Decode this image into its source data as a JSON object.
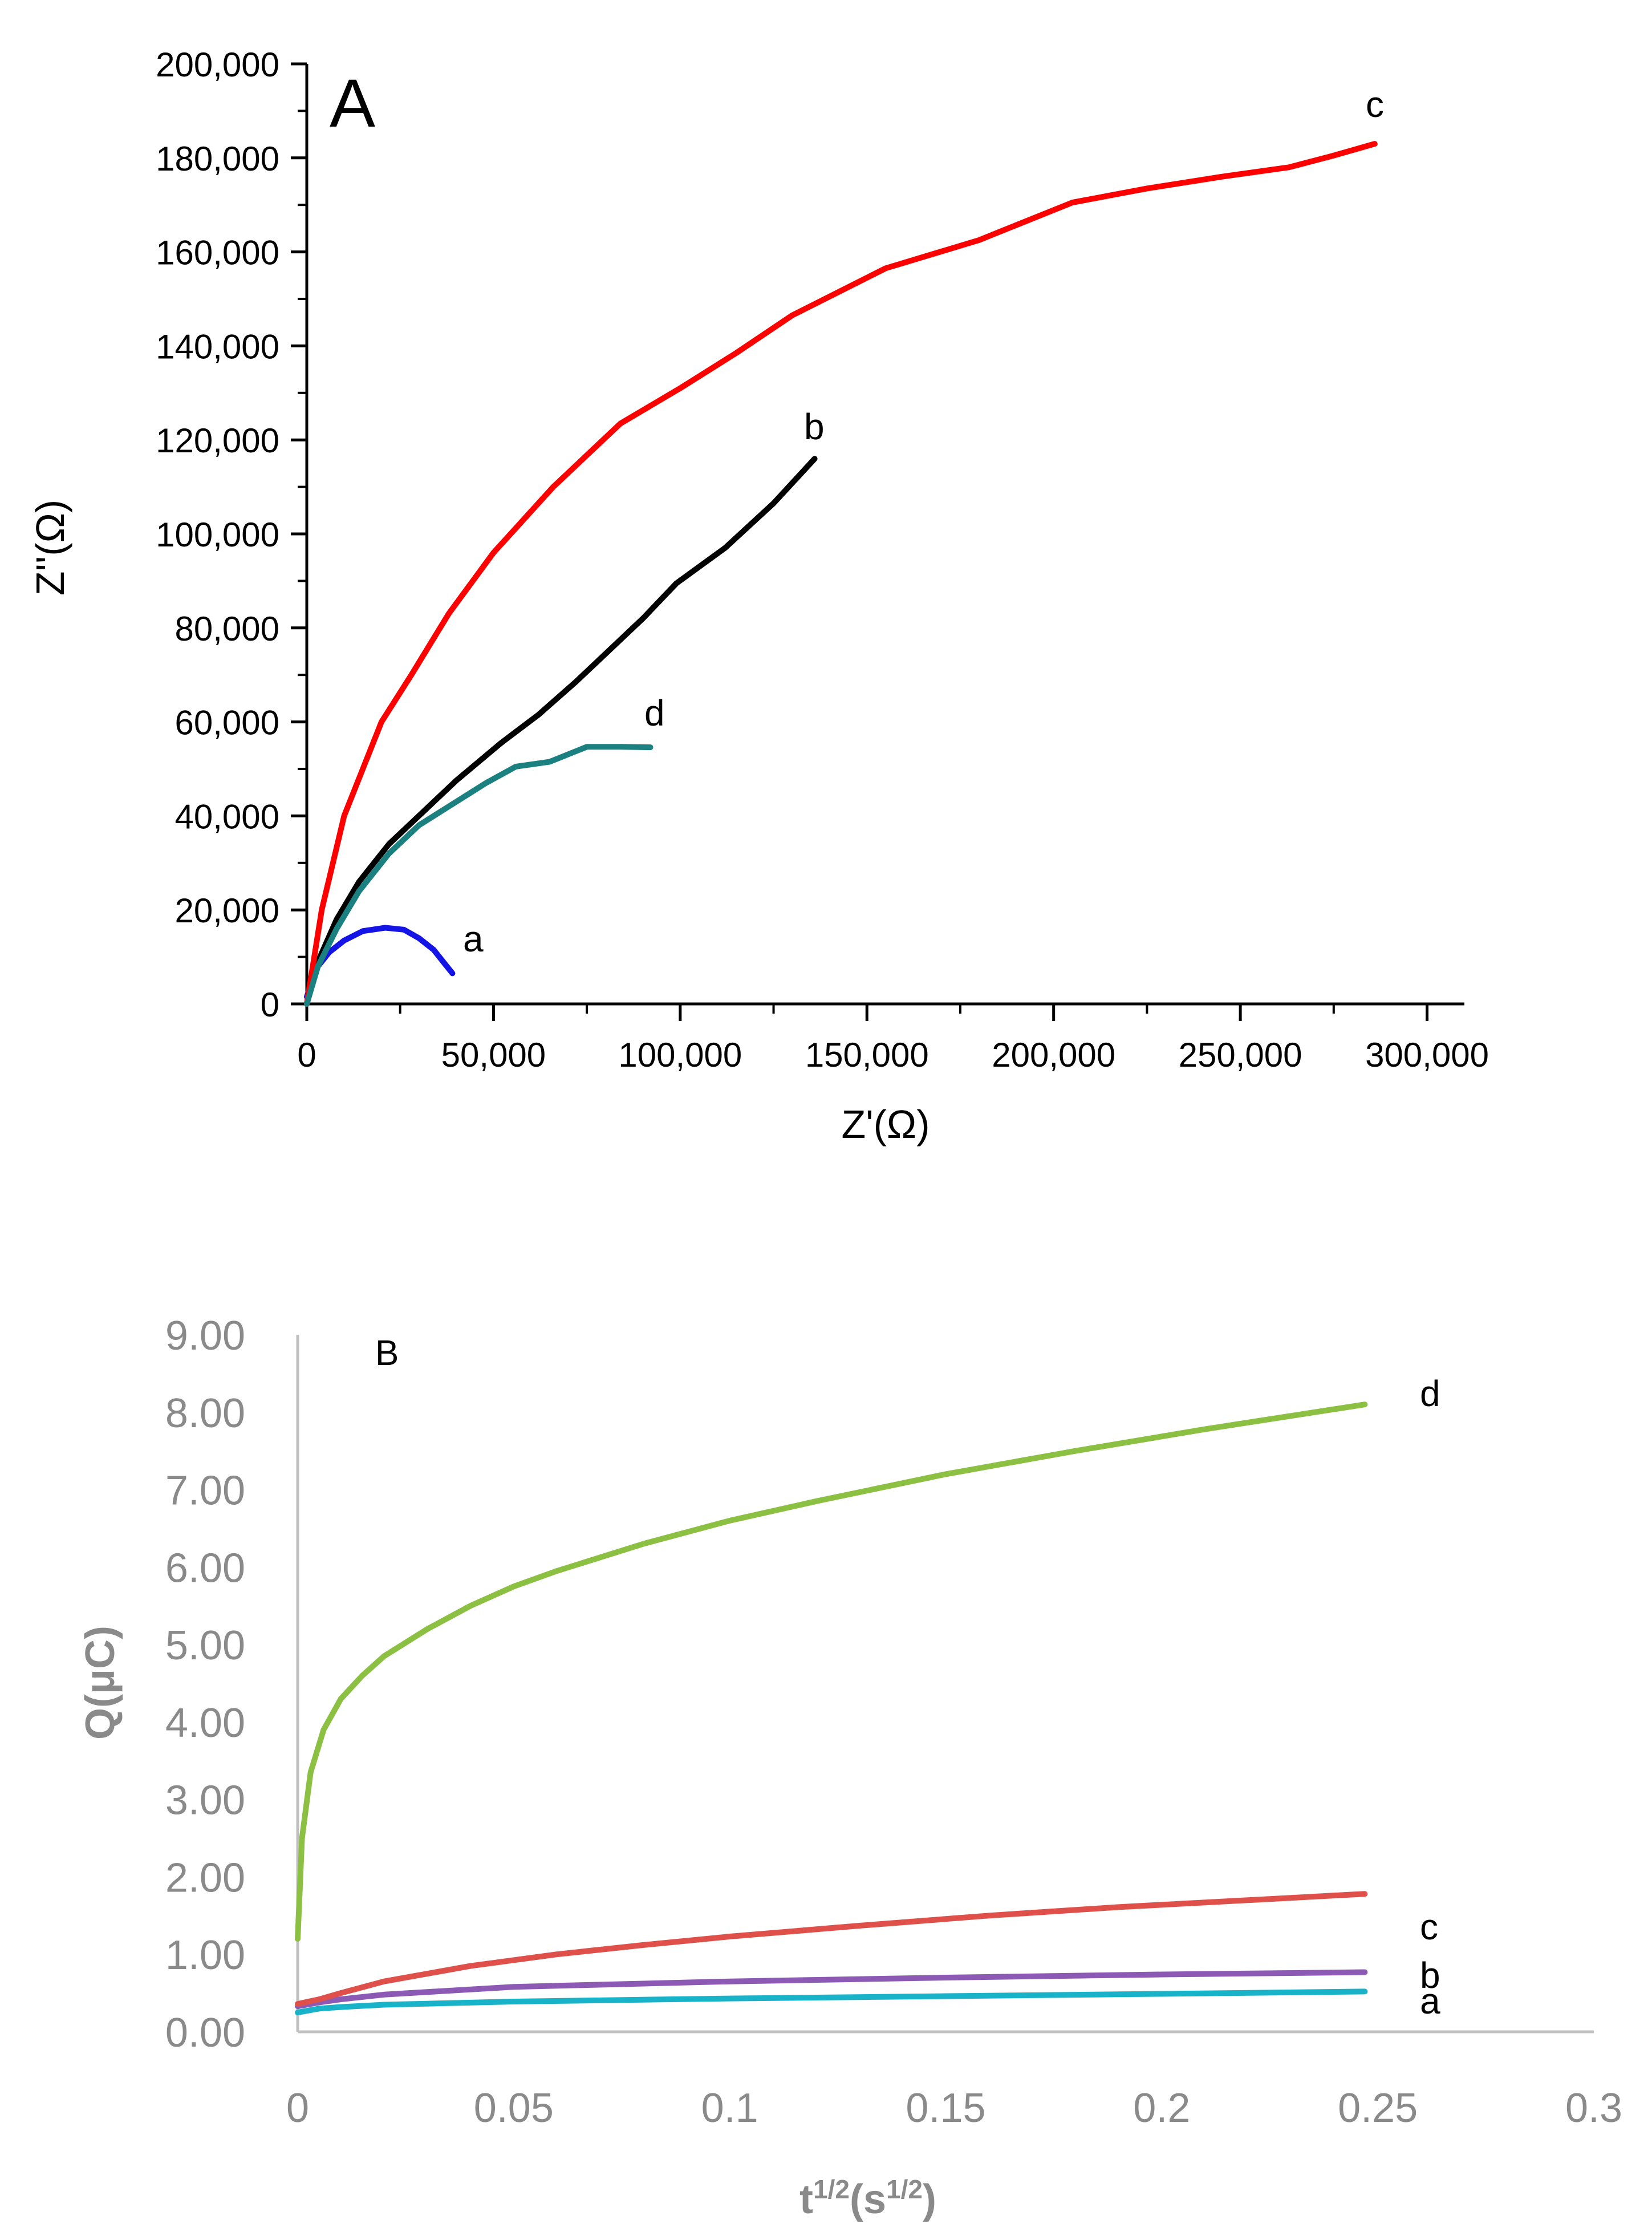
{
  "charts": [
    {
      "id": "A",
      "type": "line",
      "panel_label": "A",
      "xlabel": "Z'(Ω)",
      "ylabel": "Z''(Ω)",
      "xlim": [
        0,
        310000
      ],
      "ylim": [
        0,
        200000
      ],
      "x_ticks": [
        {
          "value": 0,
          "label": "0"
        },
        {
          "value": 50000,
          "label": "50,000"
        },
        {
          "value": 100000,
          "label": "100,000"
        },
        {
          "value": 150000,
          "label": "150,000"
        },
        {
          "value": 200000,
          "label": "200,000"
        },
        {
          "value": 250000,
          "label": "250,000"
        },
        {
          "value": 300000,
          "label": "300,000"
        }
      ],
      "y_ticks": [
        {
          "value": 0,
          "label": "0"
        },
        {
          "value": 20000,
          "label": "20,000"
        },
        {
          "value": 40000,
          "label": "40,000"
        },
        {
          "value": 60000,
          "label": "60,000"
        },
        {
          "value": 80000,
          "label": "80,000"
        },
        {
          "value": 100000,
          "label": "100,000"
        },
        {
          "value": 120000,
          "label": "120,000"
        },
        {
          "value": 140000,
          "label": "140,000"
        },
        {
          "value": 160000,
          "label": "160,000"
        },
        {
          "value": 180000,
          "label": "180,000"
        },
        {
          "value": 200000,
          "label": "200,000"
        }
      ],
      "series": [
        {
          "name": "a",
          "label": "a",
          "color": "#1414e6",
          "points": [
            [
              0,
              1500
            ],
            [
              2500,
              7500
            ],
            [
              6000,
              11000
            ],
            [
              10000,
              13500
            ],
            [
              15000,
              15500
            ],
            [
              21000,
              16200
            ],
            [
              26000,
              15800
            ],
            [
              30000,
              14000
            ],
            [
              34000,
              11500
            ],
            [
              37000,
              8500
            ],
            [
              39000,
              6500
            ]
          ]
        },
        {
          "name": "b",
          "label": "b",
          "color": "#000000",
          "points": [
            [
              0,
              0
            ],
            [
              3000,
              9000
            ],
            [
              8000,
              18000
            ],
            [
              14000,
              26000
            ],
            [
              22000,
              34000
            ],
            [
              30000,
              40000
            ],
            [
              40000,
              47500
            ],
            [
              52000,
              55500
            ],
            [
              62000,
              61500
            ],
            [
              72000,
              68500
            ],
            [
              82000,
              76000
            ],
            [
              90000,
              82000
            ],
            [
              99000,
              89500
            ],
            [
              112000,
              97000
            ],
            [
              125000,
              106500
            ],
            [
              136000,
              116000
            ]
          ]
        },
        {
          "name": "c",
          "label": "c",
          "color": "#ff0000",
          "points": [
            [
              0,
              0
            ],
            [
              4000,
              20000
            ],
            [
              10000,
              40000
            ],
            [
              20000,
              60000
            ],
            [
              28000,
              70000
            ],
            [
              38000,
              83000
            ],
            [
              50000,
              96000
            ],
            [
              66000,
              110000
            ],
            [
              84000,
              123500
            ],
            [
              100000,
              131000
            ],
            [
              115000,
              138500
            ],
            [
              130000,
              146500
            ],
            [
              155000,
              156500
            ],
            [
              180000,
              162500
            ],
            [
              205000,
              170500
            ],
            [
              225000,
              173500
            ],
            [
              245000,
              176000
            ],
            [
              263000,
              178000
            ],
            [
              275000,
              180500
            ],
            [
              286000,
              183000
            ]
          ]
        },
        {
          "name": "d",
          "label": "d",
          "color": "#1a8080",
          "points": [
            [
              0,
              0
            ],
            [
              3000,
              8000
            ],
            [
              8000,
              16000
            ],
            [
              14000,
              24000
            ],
            [
              22000,
              32000
            ],
            [
              30000,
              38000
            ],
            [
              40000,
              43000
            ],
            [
              48000,
              47000
            ],
            [
              56000,
              50500
            ],
            [
              65000,
              51500
            ],
            [
              75000,
              54700
            ],
            [
              84000,
              54700
            ],
            [
              92000,
              54600
            ]
          ]
        }
      ]
    },
    {
      "id": "B",
      "type": "line",
      "panel_label": "B",
      "xlabel_base": "t",
      "xlabel_sup1": "1/2",
      "xlabel_mid": "(s",
      "xlabel_sup2": "1/2",
      "xlabel_end": ")",
      "ylabel": "Q(μC)",
      "xlim": [
        0,
        0.3
      ],
      "ylim": [
        0,
        9
      ],
      "x_ticks": [
        {
          "value": 0,
          "label": "0"
        },
        {
          "value": 0.05,
          "label": "0.05"
        },
        {
          "value": 0.1,
          "label": "0.1"
        },
        {
          "value": 0.15,
          "label": "0.15"
        },
        {
          "value": 0.2,
          "label": "0.2"
        },
        {
          "value": 0.25,
          "label": "0.25"
        },
        {
          "value": 0.3,
          "label": "0.3"
        }
      ],
      "y_ticks": [
        {
          "value": 0,
          "label": "0.00"
        },
        {
          "value": 1,
          "label": "1.00"
        },
        {
          "value": 2,
          "label": "2.00"
        },
        {
          "value": 3,
          "label": "3.00"
        },
        {
          "value": 4,
          "label": "4.00"
        },
        {
          "value": 5,
          "label": "5.00"
        },
        {
          "value": 6,
          "label": "6.00"
        },
        {
          "value": 7,
          "label": "7.00"
        },
        {
          "value": 8,
          "label": "8.00"
        },
        {
          "value": 9,
          "label": "9.00"
        }
      ],
      "series": [
        {
          "name": "a",
          "label": "a",
          "color": "#19b3c9",
          "points": [
            [
              0,
              0.25
            ],
            [
              0.005,
              0.3
            ],
            [
              0.01,
              0.32
            ],
            [
              0.02,
              0.35
            ],
            [
              0.05,
              0.39
            ],
            [
              0.1,
              0.43
            ],
            [
              0.15,
              0.46
            ],
            [
              0.2,
              0.49
            ],
            [
              0.247,
              0.52
            ]
          ]
        },
        {
          "name": "b",
          "label": "b",
          "color": "#8c5ab4",
          "points": [
            [
              0,
              0.33
            ],
            [
              0.005,
              0.38
            ],
            [
              0.01,
              0.42
            ],
            [
              0.02,
              0.48
            ],
            [
              0.05,
              0.58
            ],
            [
              0.1,
              0.65
            ],
            [
              0.15,
              0.7
            ],
            [
              0.2,
              0.74
            ],
            [
              0.247,
              0.77
            ]
          ]
        },
        {
          "name": "c",
          "label": "c",
          "color": "#e0504a",
          "points": [
            [
              0,
              0.36
            ],
            [
              0.005,
              0.42
            ],
            [
              0.01,
              0.5
            ],
            [
              0.02,
              0.65
            ],
            [
              0.04,
              0.85
            ],
            [
              0.06,
              1.0
            ],
            [
              0.08,
              1.12
            ],
            [
              0.1,
              1.23
            ],
            [
              0.13,
              1.37
            ],
            [
              0.16,
              1.5
            ],
            [
              0.19,
              1.61
            ],
            [
              0.22,
              1.7
            ],
            [
              0.247,
              1.78
            ]
          ]
        },
        {
          "name": "d",
          "label": "d",
          "color": "#8cc043",
          "points": [
            [
              0,
              1.2
            ],
            [
              0.001,
              2.5
            ],
            [
              0.003,
              3.35
            ],
            [
              0.006,
              3.9
            ],
            [
              0.01,
              4.3
            ],
            [
              0.015,
              4.6
            ],
            [
              0.02,
              4.85
            ],
            [
              0.03,
              5.2
            ],
            [
              0.04,
              5.5
            ],
            [
              0.05,
              5.75
            ],
            [
              0.06,
              5.95
            ],
            [
              0.08,
              6.3
            ],
            [
              0.1,
              6.6
            ],
            [
              0.12,
              6.85
            ],
            [
              0.15,
              7.2
            ],
            [
              0.18,
              7.5
            ],
            [
              0.21,
              7.78
            ],
            [
              0.247,
              8.1
            ]
          ]
        }
      ]
    }
  ],
  "chart_data": [
    {
      "type": "line",
      "title": "A",
      "xlabel": "Z'(Ω)",
      "ylabel": "Z''(Ω)",
      "xlim": [
        0,
        310000
      ],
      "ylim": [
        0,
        200000
      ],
      "series": [
        {
          "name": "a",
          "x": [
            0,
            21000,
            39000
          ],
          "y": [
            1500,
            16200,
            6500
          ]
        },
        {
          "name": "b",
          "x": [
            0,
            52000,
            99000,
            136000
          ],
          "y": [
            0,
            55500,
            89500,
            116000
          ]
        },
        {
          "name": "c",
          "x": [
            0,
            84000,
            155000,
            205000,
            286000
          ],
          "y": [
            0,
            123500,
            156500,
            170500,
            183000
          ]
        },
        {
          "name": "d",
          "x": [
            0,
            40000,
            75000,
            92000
          ],
          "y": [
            0,
            43000,
            54700,
            54600
          ]
        }
      ]
    },
    {
      "type": "line",
      "title": "B",
      "xlabel": "t1/2(s1/2)",
      "ylabel": "Q(μC)",
      "xlim": [
        0,
        0.3
      ],
      "ylim": [
        0,
        9
      ],
      "series": [
        {
          "name": "a",
          "x": [
            0,
            0.1,
            0.247
          ],
          "y": [
            0.25,
            0.43,
            0.52
          ]
        },
        {
          "name": "b",
          "x": [
            0,
            0.1,
            0.247
          ],
          "y": [
            0.33,
            0.65,
            0.77
          ]
        },
        {
          "name": "c",
          "x": [
            0,
            0.1,
            0.247
          ],
          "y": [
            0.36,
            1.23,
            1.78
          ]
        },
        {
          "name": "d",
          "x": [
            0,
            0.05,
            0.1,
            0.247
          ],
          "y": [
            1.2,
            5.75,
            6.6,
            8.1
          ]
        }
      ]
    }
  ]
}
